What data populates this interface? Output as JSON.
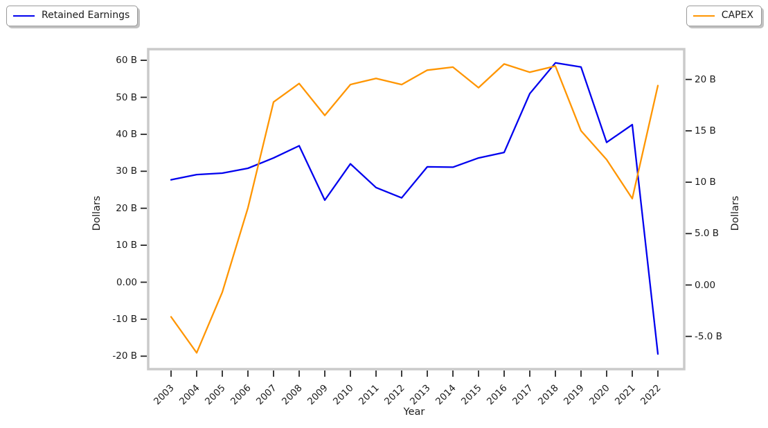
{
  "legend_left": {
    "label": "Retained Earnings",
    "color": "#0000ee"
  },
  "legend_right": {
    "label": "CAPEX",
    "color": "#ff9500"
  },
  "chart_data": {
    "type": "line",
    "title": "",
    "xlabel": "Year",
    "x": [
      2003,
      2004,
      2005,
      2006,
      2007,
      2008,
      2009,
      2010,
      2011,
      2012,
      2013,
      2014,
      2015,
      2016,
      2017,
      2018,
      2019,
      2020,
      2021,
      2022
    ],
    "series": [
      {
        "name": "Retained Earnings",
        "axis": "left",
        "color": "#0000ee",
        "values": [
          27.7,
          29.1,
          29.5,
          30.8,
          33.6,
          36.9,
          22.2,
          32.0,
          25.6,
          22.8,
          31.2,
          31.1,
          33.6,
          35.1,
          51.0,
          59.3,
          58.2,
          37.8,
          42.6,
          -19.4
        ]
      },
      {
        "name": "CAPEX",
        "axis": "right",
        "color": "#ff9500",
        "values": [
          -3.1,
          -6.6,
          -0.7,
          7.5,
          17.8,
          19.6,
          16.5,
          19.5,
          20.1,
          19.5,
          20.9,
          21.2,
          19.2,
          21.5,
          20.7,
          21.3,
          15.0,
          12.2,
          8.4,
          19.4
        ]
      }
    ],
    "left_axis": {
      "label": "Dollars",
      "tick_values": [
        60,
        50,
        40,
        30,
        20,
        10,
        0,
        -10,
        -20
      ],
      "tick_labels": [
        "60 B",
        "50 B",
        "40 B",
        "30 B",
        "20 B",
        "10 B",
        "0.00",
        "-10 B",
        "-20 B"
      ],
      "range": [
        -23.3,
        63.2
      ],
      "units": "B"
    },
    "right_axis": {
      "label": "Dollars",
      "tick_values": [
        20,
        15,
        10,
        5,
        0,
        -5
      ],
      "tick_labels": [
        "20 B",
        "15 B",
        "10 B",
        "5.0 B",
        "0.00",
        "-5.0 B"
      ],
      "range": [
        -8.2,
        23.0
      ],
      "units": "B"
    },
    "grid": false,
    "legend_position": "outside-top-left and outside-top-right",
    "frame_color": "#cacaca",
    "tick_color": "#262626"
  }
}
